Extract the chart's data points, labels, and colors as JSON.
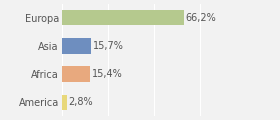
{
  "categories": [
    "Europa",
    "Asia",
    "Africa",
    "America"
  ],
  "values": [
    66.2,
    15.7,
    15.4,
    2.8
  ],
  "labels": [
    "66,2%",
    "15,7%",
    "15,4%",
    "2,8%"
  ],
  "bar_colors": [
    "#b5c98e",
    "#6e8ebf",
    "#e8a97e",
    "#e8d87a"
  ],
  "background_color": "#f2f2f2",
  "xlim": [
    0,
    100
  ],
  "label_fontsize": 7.0,
  "tick_fontsize": 7.0,
  "bar_height": 0.55
}
